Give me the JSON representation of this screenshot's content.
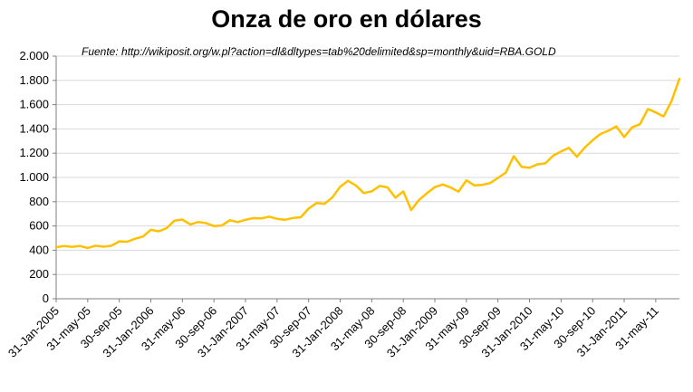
{
  "chart_data": {
    "type": "line",
    "title": "Onza de oro en dólares",
    "subtitle": "Fuente: http://wikiposit.org/w.pl?action=dl&dltypes=tab%20delimited&sp=monthly&uid=RBA.GOLD",
    "legend": "none",
    "grid": "horizontal",
    "ylim": [
      0,
      2000
    ],
    "y_ticks": [
      0,
      200,
      400,
      600,
      800,
      1000,
      1200,
      1400,
      1600,
      1800,
      2000
    ],
    "y_tick_labels": [
      "0",
      "200",
      "400",
      "600",
      "800",
      "1.000",
      "1.200",
      "1.400",
      "1.600",
      "1.800",
      "2.000"
    ],
    "x_tick_interval": 4,
    "x_tick_labels": [
      "31-Jan-2005",
      "31-may-05",
      "30-sep-05",
      "31-Jan-2006",
      "31-may-06",
      "30-sep-06",
      "31-Jan-2007",
      "31-may-07",
      "30-sep-07",
      "31-Jan-2008",
      "31-may-08",
      "30-sep-08",
      "31-Jan-2009",
      "31-may-09",
      "30-sep-09",
      "31-Jan-2010",
      "31-may-10",
      "30-sep-10",
      "31-Jan-2011",
      "31-may-11"
    ],
    "x": [
      "2005-01",
      "2005-02",
      "2005-03",
      "2005-04",
      "2005-05",
      "2005-06",
      "2005-07",
      "2005-08",
      "2005-09",
      "2005-10",
      "2005-11",
      "2005-12",
      "2006-01",
      "2006-02",
      "2006-03",
      "2006-04",
      "2006-05",
      "2006-06",
      "2006-07",
      "2006-08",
      "2006-09",
      "2006-10",
      "2006-11",
      "2006-12",
      "2007-01",
      "2007-02",
      "2007-03",
      "2007-04",
      "2007-05",
      "2007-06",
      "2007-07",
      "2007-08",
      "2007-09",
      "2007-10",
      "2007-11",
      "2007-12",
      "2008-01",
      "2008-02",
      "2008-03",
      "2008-04",
      "2008-05",
      "2008-06",
      "2008-07",
      "2008-08",
      "2008-09",
      "2008-10",
      "2008-11",
      "2008-12",
      "2009-01",
      "2009-02",
      "2009-03",
      "2009-04",
      "2009-05",
      "2009-06",
      "2009-07",
      "2009-08",
      "2009-09",
      "2009-10",
      "2009-11",
      "2009-12",
      "2010-01",
      "2010-02",
      "2010-03",
      "2010-04",
      "2010-05",
      "2010-06",
      "2010-07",
      "2010-08",
      "2010-09",
      "2010-10",
      "2010-11",
      "2010-12",
      "2011-01",
      "2011-02",
      "2011-03",
      "2011-04",
      "2011-05",
      "2011-06",
      "2011-07",
      "2011-08"
    ],
    "series": [
      {
        "name": "RBA.GOLD",
        "color": "#FFC000",
        "values": [
          425,
          435,
          428,
          435,
          419,
          437,
          429,
          437,
          473,
          470,
          495,
          513,
          569,
          556,
          582,
          644,
          653,
          613,
          633,
          623,
          599,
          604,
          647,
          632,
          651,
          665,
          662,
          677,
          659,
          651,
          666,
          672,
          743,
          789,
          783,
          834,
          924,
          972,
          934,
          871,
          886,
          930,
          918,
          833,
          885,
          731,
          815,
          870,
          920,
          942,
          917,
          883,
          976,
          934,
          939,
          953,
          996,
          1040,
          1175,
          1088,
          1079,
          1108,
          1116,
          1180,
          1214,
          1244,
          1170,
          1246,
          1307,
          1358,
          1385,
          1421,
          1333,
          1412,
          1439,
          1564,
          1536,
          1503,
          1629,
          1813
        ]
      }
    ],
    "colors": {
      "line": "#FFC000",
      "grid": "#D9D9D9",
      "axis": "#808080",
      "text": "#000000",
      "background": "#FFFFFF"
    }
  }
}
